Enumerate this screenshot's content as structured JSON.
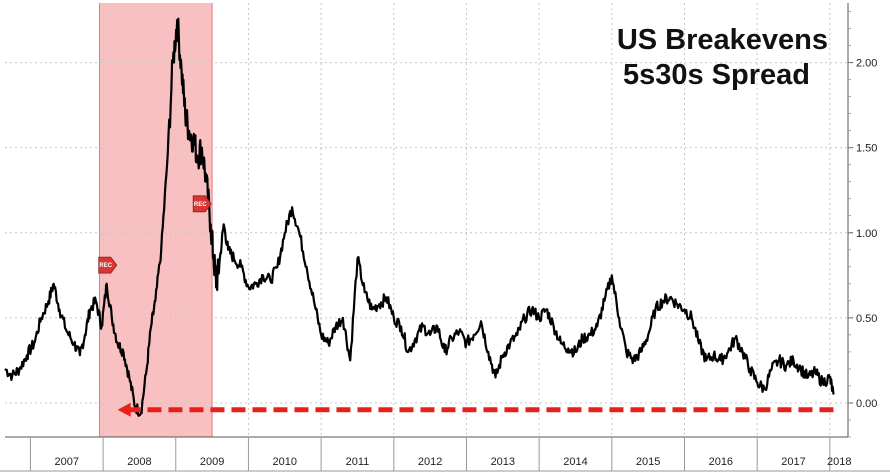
{
  "chart_data": {
    "type": "line",
    "title_lines": [
      "US Breakevens",
      "5s30s Spread"
    ],
    "xlabel": "",
    "ylabel": "",
    "x_ticks": [
      "2007",
      "2008",
      "2009",
      "2010",
      "2011",
      "2012",
      "2013",
      "2014",
      "2015",
      "2016",
      "2017",
      "2018"
    ],
    "y_ticks": [
      "0.00",
      "0.50",
      "1.00",
      "1.50",
      "2.00"
    ],
    "xlim": [
      2006.65,
      2018.25
    ],
    "ylim": [
      -0.2,
      2.35
    ],
    "grid": true,
    "y_axis_side": "right",
    "recession": {
      "start": 2007.95,
      "end": 2009.5,
      "color": "#f7b5b5"
    },
    "rec_markers": [
      {
        "label": "REC",
        "x": 2008.05,
        "y": 0.81
      },
      {
        "label": "REC",
        "x": 2009.35,
        "y": 1.17
      }
    ],
    "reference_line": {
      "y": -0.04,
      "from_x": 2008.2,
      "to_x": 2018.05,
      "color": "#e8201c",
      "style": "dashed-arrow"
    },
    "series": [
      {
        "color": "#000000",
        "x": [
          2006.65,
          2006.75,
          2006.85,
          2006.95,
          2007.05,
          2007.15,
          2007.25,
          2007.32,
          2007.4,
          2007.5,
          2007.6,
          2007.68,
          2007.75,
          2007.82,
          2007.9,
          2007.98,
          2008.05,
          2008.12,
          2008.2,
          2008.28,
          2008.36,
          2008.44,
          2008.52,
          2008.6,
          2008.66,
          2008.72,
          2008.8,
          2008.88,
          2008.96,
          2009.02,
          2009.08,
          2009.13,
          2009.18,
          2009.24,
          2009.3,
          2009.36,
          2009.42,
          2009.48,
          2009.52,
          2009.56,
          2009.6,
          2009.66,
          2009.72,
          2009.8,
          2009.9,
          2010.0,
          2010.1,
          2010.2,
          2010.3,
          2010.4,
          2010.5,
          2010.6,
          2010.7,
          2010.8,
          2010.9,
          2011.0,
          2011.1,
          2011.2,
          2011.3,
          2011.4,
          2011.5,
          2011.6,
          2011.7,
          2011.8,
          2011.9,
          2012.0,
          2012.1,
          2012.2,
          2012.3,
          2012.4,
          2012.5,
          2012.6,
          2012.7,
          2012.8,
          2012.9,
          2013.0,
          2013.1,
          2013.2,
          2013.3,
          2013.4,
          2013.5,
          2013.6,
          2013.7,
          2013.8,
          2013.9,
          2014.0,
          2014.1,
          2014.2,
          2014.3,
          2014.4,
          2014.5,
          2014.6,
          2014.7,
          2014.8,
          2014.9,
          2015.0,
          2015.1,
          2015.2,
          2015.3,
          2015.4,
          2015.5,
          2015.6,
          2015.7,
          2015.8,
          2015.9,
          2016.0,
          2016.1,
          2016.2,
          2016.3,
          2016.4,
          2016.5,
          2016.6,
          2016.7,
          2016.8,
          2016.9,
          2017.0,
          2017.1,
          2017.2,
          2017.3,
          2017.4,
          2017.5,
          2017.6,
          2017.7,
          2017.8,
          2017.9,
          2018.0,
          2018.05
        ],
        "y": [
          0.2,
          0.16,
          0.2,
          0.28,
          0.35,
          0.5,
          0.6,
          0.7,
          0.55,
          0.42,
          0.35,
          0.28,
          0.4,
          0.55,
          0.6,
          0.45,
          0.7,
          0.5,
          0.35,
          0.3,
          0.15,
          -0.02,
          -0.06,
          0.2,
          0.45,
          0.6,
          0.9,
          1.4,
          2.0,
          2.25,
          1.95,
          1.7,
          1.6,
          1.55,
          1.45,
          1.5,
          1.3,
          1.05,
          0.85,
          0.7,
          0.82,
          1.05,
          0.9,
          0.85,
          0.8,
          0.68,
          0.7,
          0.75,
          0.72,
          0.8,
          1.0,
          1.15,
          1.0,
          0.8,
          0.6,
          0.4,
          0.35,
          0.45,
          0.5,
          0.25,
          0.85,
          0.65,
          0.55,
          0.58,
          0.62,
          0.5,
          0.45,
          0.3,
          0.38,
          0.45,
          0.4,
          0.45,
          0.3,
          0.38,
          0.42,
          0.35,
          0.4,
          0.48,
          0.3,
          0.15,
          0.28,
          0.35,
          0.4,
          0.5,
          0.55,
          0.5,
          0.55,
          0.45,
          0.35,
          0.32,
          0.3,
          0.38,
          0.4,
          0.45,
          0.6,
          0.75,
          0.5,
          0.3,
          0.25,
          0.3,
          0.4,
          0.55,
          0.6,
          0.62,
          0.58,
          0.55,
          0.5,
          0.35,
          0.25,
          0.28,
          0.25,
          0.3,
          0.38,
          0.3,
          0.2,
          0.12,
          0.08,
          0.2,
          0.25,
          0.22,
          0.25,
          0.2,
          0.15,
          0.18,
          0.12,
          0.15,
          0.05
        ]
      }
    ]
  }
}
